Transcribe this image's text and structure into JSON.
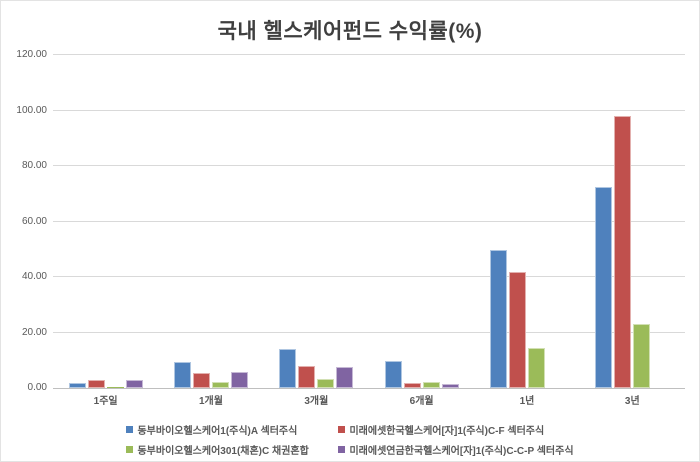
{
  "chart_data": {
    "type": "bar",
    "title": "국내 헬스케어펀드 수익률(%)",
    "categories": [
      "1주일",
      "1개월",
      "3개월",
      "6개월",
      "1년",
      "3년"
    ],
    "series": [
      {
        "name": "동부바이오헬스케어1(주식)A 섹터주식",
        "color": "#4F81BD",
        "values": [
          1.9,
          9.2,
          13.9,
          9.6,
          49.8,
          72.3
        ]
      },
      {
        "name": "미래에셋한국헬스케어[자]1(주식)C-F 섹터주식",
        "color": "#C0504D",
        "values": [
          3.0,
          5.5,
          8.0,
          1.8,
          41.8,
          98.0
        ]
      },
      {
        "name": "동부바이오헬스케어301(채혼)C 채권혼합",
        "color": "#9BBB59",
        "values": [
          0.4,
          2.2,
          3.4,
          2.3,
          14.5,
          23.2
        ]
      },
      {
        "name": "미래에셋연금한국헬스케어[자]1(주식)C-C-P 섹터주식",
        "color": "#8064A2",
        "values": [
          2.8,
          5.6,
          7.4,
          1.3,
          0.0,
          0.0
        ]
      }
    ],
    "xlabel": "",
    "ylabel": "",
    "ylim": [
      0,
      120
    ],
    "y_ticks": [
      "120.00",
      "100.00",
      "80.00",
      "60.00",
      "40.00",
      "20.00",
      "0.00"
    ],
    "grid": true,
    "legend_position": "bottom",
    "colors": {
      "gridline": "#D9D9D9",
      "axis_line": "#BFBFBF",
      "axis_text": "#595959",
      "title_text": "#3F3F3F",
      "background": "#FFFFFF"
    }
  }
}
